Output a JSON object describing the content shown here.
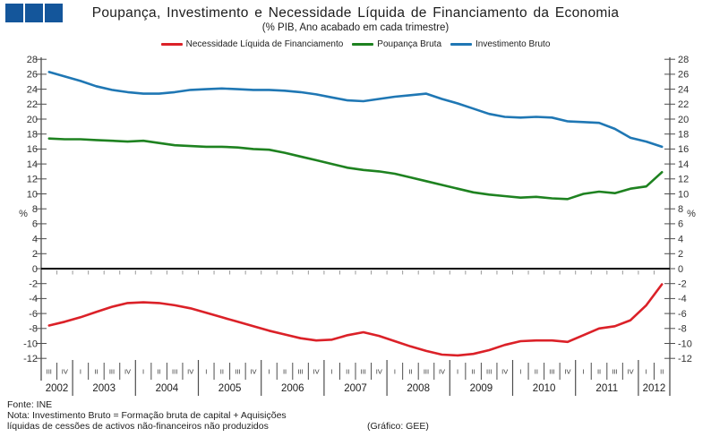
{
  "header": {
    "title": "Poupança, Investimento e Necessidade Líquida de Financiamento da Economia",
    "subtitle": "(% PIB, Ano acabado em cada trimestre)"
  },
  "logo": {
    "color": "#14569B",
    "squares": 3
  },
  "chart_data": {
    "type": "line",
    "title": "Poupança, Investimento e Necessidade Líquida de Financiamento da Economia",
    "subtitle": "(% PIB, Ano acabado em cada trimestre)",
    "yaxis_unit": "%",
    "ylim": [
      -12,
      28
    ],
    "ytick_step": 2,
    "grid": false,
    "legend_position": "top",
    "zero_line": true,
    "x_quarters": [
      "III",
      "IV",
      "I",
      "II",
      "III",
      "IV",
      "I",
      "II",
      "III",
      "IV",
      "I",
      "II",
      "III",
      "IV",
      "I",
      "II",
      "III",
      "IV",
      "I",
      "II",
      "III",
      "IV",
      "I",
      "II",
      "III",
      "IV",
      "I",
      "II",
      "III",
      "IV",
      "I",
      "II",
      "III",
      "IV",
      "I",
      "II",
      "III",
      "IV",
      "I",
      "II"
    ],
    "x_years": [
      {
        "label": "2002",
        "n": 2
      },
      {
        "label": "2003",
        "n": 4
      },
      {
        "label": "2004",
        "n": 4
      },
      {
        "label": "2005",
        "n": 4
      },
      {
        "label": "2006",
        "n": 4
      },
      {
        "label": "2007",
        "n": 4
      },
      {
        "label": "2008",
        "n": 4
      },
      {
        "label": "2009",
        "n": 4
      },
      {
        "label": "2010",
        "n": 4
      },
      {
        "label": "2011",
        "n": 4
      },
      {
        "label": "2012",
        "n": 2
      }
    ],
    "series": [
      {
        "name": "Necessidade Líquida de Financiamento",
        "color": "#DB2128",
        "values": [
          -7.6,
          -7.1,
          -6.5,
          -5.8,
          -5.1,
          -4.6,
          -4.5,
          -4.6,
          -4.9,
          -5.3,
          -5.9,
          -6.5,
          -7.1,
          -7.7,
          -8.3,
          -8.8,
          -9.3,
          -9.6,
          -9.5,
          -8.9,
          -8.5,
          -9.0,
          -9.7,
          -10.4,
          -11.0,
          -11.5,
          -11.6,
          -11.4,
          -10.9,
          -10.2,
          -9.7,
          -9.6,
          -9.6,
          -9.8,
          -8.9,
          -8.0,
          -7.7,
          -6.9,
          -4.9,
          -2.1
        ]
      },
      {
        "name": "Poupança Bruta",
        "color": "#1E8220",
        "values": [
          17.4,
          17.3,
          17.3,
          17.2,
          17.1,
          17.0,
          17.1,
          16.8,
          16.5,
          16.4,
          16.3,
          16.3,
          16.2,
          16.0,
          15.9,
          15.5,
          15.0,
          14.5,
          14.0,
          13.5,
          13.2,
          13.0,
          12.7,
          12.2,
          11.7,
          11.2,
          10.7,
          10.2,
          9.9,
          9.7,
          9.5,
          9.6,
          9.4,
          9.3,
          10.0,
          10.3,
          10.1,
          10.7,
          11.0,
          12.9
        ]
      },
      {
        "name": "Investimento Bruto",
        "color": "#1F77B4",
        "values": [
          26.3,
          25.7,
          25.1,
          24.4,
          23.9,
          23.6,
          23.4,
          23.4,
          23.6,
          23.9,
          24.0,
          24.1,
          24.0,
          23.9,
          23.9,
          23.8,
          23.6,
          23.3,
          22.9,
          22.5,
          22.4,
          22.7,
          23.0,
          23.2,
          23.4,
          22.7,
          22.1,
          21.4,
          20.7,
          20.3,
          20.2,
          20.3,
          20.2,
          19.7,
          19.6,
          19.5,
          18.7,
          17.5,
          17.0,
          16.3
        ]
      }
    ]
  },
  "footer": {
    "source": "Fonte: INE",
    "note_line1": "Nota: Investimento Bruto = Formação bruta de capital + Aquisições",
    "note_line2": "líquidas de cessões de activos não-financeiros não produzidos",
    "credit": "(Gráfico: GEE)"
  }
}
